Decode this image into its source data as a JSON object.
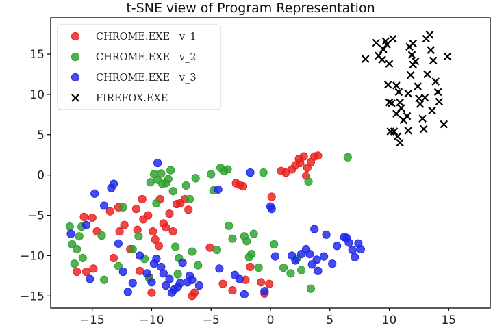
{
  "chart_data": {
    "type": "scatter",
    "title": "t-SNE view of Program Representation",
    "xlabel": "",
    "ylabel": "",
    "xlim": [
      -18.5,
      18.5
    ],
    "ylim": [
      -16.5,
      19.5
    ],
    "xticks": [
      -15,
      -10,
      -5,
      0,
      5,
      10,
      15
    ],
    "yticks": [
      -15,
      -10,
      -5,
      0,
      5,
      10,
      15
    ],
    "grid": false,
    "legend_position": "top-left",
    "series": [
      {
        "name": "CHROME.EXE   v_1",
        "marker": "circle",
        "color": "#e8201f",
        "points": [
          [
            -16.3,
            -12.0
          ],
          [
            -15.5,
            -12.0
          ],
          [
            -14.9,
            -11.6
          ],
          [
            -15.7,
            -5.2
          ],
          [
            -15.0,
            -5.3
          ],
          [
            -14.6,
            -7.0
          ],
          [
            -13.5,
            -4.5
          ],
          [
            -13.2,
            -10.3
          ],
          [
            -12.8,
            -4.0
          ],
          [
            -12.7,
            -7.0
          ],
          [
            -12.3,
            -6.2
          ],
          [
            -11.8,
            -9.2
          ],
          [
            -11.3,
            -4.2
          ],
          [
            -11.2,
            -6.8
          ],
          [
            -11.0,
            -11.9
          ],
          [
            -10.8,
            -3.0
          ],
          [
            -10.7,
            -5.5
          ],
          [
            -10.3,
            -5.0
          ],
          [
            -10.2,
            -12.7
          ],
          [
            -10.0,
            -14.6
          ],
          [
            -9.9,
            -7.0
          ],
          [
            -9.7,
            -8.0
          ],
          [
            -9.4,
            -8.8
          ],
          [
            -9.3,
            -3.0
          ],
          [
            -9.0,
            -6.0
          ],
          [
            -8.8,
            -6.5
          ],
          [
            -8.5,
            -4.8
          ],
          [
            -8.2,
            -7.0
          ],
          [
            -7.9,
            -3.6
          ],
          [
            -7.6,
            -3.5
          ],
          [
            -7.2,
            -3.0
          ],
          [
            -6.9,
            -4.3
          ],
          [
            -6.6,
            -15.0
          ],
          [
            -6.4,
            -14.6
          ],
          [
            -5.1,
            -9.0
          ],
          [
            -4.0,
            -13.5
          ],
          [
            -3.2,
            -14.3
          ],
          [
            -2.9,
            -1.0
          ],
          [
            -2.6,
            -1.2
          ],
          [
            -2.3,
            -1.4
          ],
          [
            -2.1,
            -13.0
          ],
          [
            -1.7,
            -11.4
          ],
          [
            -0.8,
            -13.3
          ],
          [
            -0.5,
            -14.7
          ],
          [
            -0.1,
            -13.5
          ],
          [
            0.1,
            -2.7
          ],
          [
            0.9,
            0.5
          ],
          [
            1.3,
            0.3
          ],
          [
            1.8,
            0.7
          ],
          [
            2.1,
            1.2
          ],
          [
            2.4,
            2.0
          ],
          [
            2.8,
            2.3
          ],
          [
            3.1,
            0.9
          ],
          [
            3.4,
            1.6
          ],
          [
            3.7,
            2.3
          ],
          [
            4.0,
            2.4
          ],
          [
            3.0,
            -0.1
          ],
          [
            2.5,
            1.5
          ]
        ]
      },
      {
        "name": "CHROME.EXE   v_2",
        "marker": "circle",
        "color": "#2ca02c",
        "points": [
          [
            -16.9,
            -6.4
          ],
          [
            -16.7,
            -8.6
          ],
          [
            -16.3,
            -9.2
          ],
          [
            -16.5,
            -11.0
          ],
          [
            -16.1,
            -7.6
          ],
          [
            -15.9,
            -6.4
          ],
          [
            -15.8,
            -10.3
          ],
          [
            -14.2,
            -7.5
          ],
          [
            -14.0,
            -13.0
          ],
          [
            -12.8,
            -11.3
          ],
          [
            -12.4,
            -4.0
          ],
          [
            -11.6,
            -9.2
          ],
          [
            -11.1,
            -7.6
          ],
          [
            -10.6,
            -10.4
          ],
          [
            -10.2,
            -12.8
          ],
          [
            -10.1,
            -0.9
          ],
          [
            -9.8,
            0.1
          ],
          [
            -9.6,
            -3.5
          ],
          [
            -9.5,
            -0.6
          ],
          [
            -9.2,
            0.2
          ],
          [
            -9.1,
            -1.1
          ],
          [
            -8.8,
            -1.0
          ],
          [
            -8.6,
            -0.5
          ],
          [
            -8.4,
            0.6
          ],
          [
            -8.2,
            -2.0
          ],
          [
            -8.0,
            -8.9
          ],
          [
            -7.7,
            -10.3
          ],
          [
            -7.8,
            -12.3
          ],
          [
            -7.1,
            -1.3
          ],
          [
            -6.8,
            -3.0
          ],
          [
            -6.6,
            -9.5
          ],
          [
            -6.3,
            -0.4
          ],
          [
            -6.1,
            -11.2
          ],
          [
            -5.0,
            0.1
          ],
          [
            -4.8,
            -1.9
          ],
          [
            -4.5,
            -9.3
          ],
          [
            -4.2,
            0.9
          ],
          [
            -3.9,
            0.5
          ],
          [
            -3.6,
            0.7
          ],
          [
            -3.5,
            -6.3
          ],
          [
            -3.2,
            -7.9
          ],
          [
            -2.2,
            -7.6
          ],
          [
            -2.0,
            -8.2
          ],
          [
            -1.8,
            -10.2
          ],
          [
            -1.6,
            -9.8
          ],
          [
            -1.0,
            -11.5
          ],
          [
            -0.6,
            0.3
          ],
          [
            0.3,
            -8.6
          ],
          [
            1.1,
            -11.5
          ],
          [
            1.7,
            -12.2
          ],
          [
            2.2,
            -10.4
          ],
          [
            2.6,
            -11.8
          ],
          [
            3.2,
            -0.8
          ],
          [
            3.4,
            -14.1
          ],
          [
            6.5,
            2.2
          ],
          [
            -1.4,
            -7.3
          ]
        ]
      },
      {
        "name": "CHROME.EXE   v_3",
        "marker": "circle",
        "color": "#1f26e8",
        "points": [
          [
            -16.8,
            -7.3
          ],
          [
            -15.5,
            -6.2
          ],
          [
            -15.2,
            -12.9
          ],
          [
            -14.8,
            -2.3
          ],
          [
            -14.0,
            -3.8
          ],
          [
            -13.4,
            -1.6
          ],
          [
            -13.2,
            -1.1
          ],
          [
            -12.8,
            -8.5
          ],
          [
            -12.4,
            -12.0
          ],
          [
            -11.6,
            -13.4
          ],
          [
            -11.0,
            -10.0
          ],
          [
            -10.4,
            -12.2
          ],
          [
            -10.0,
            -13.3
          ],
          [
            -9.6,
            -10.4
          ],
          [
            -9.5,
            1.5
          ],
          [
            -9.2,
            -11.4
          ],
          [
            -9.0,
            -12.2
          ],
          [
            -8.8,
            -13.7
          ],
          [
            -8.5,
            -12.9
          ],
          [
            -8.3,
            -14.6
          ],
          [
            -8.1,
            -14.2
          ],
          [
            -7.8,
            -13.9
          ],
          [
            -7.6,
            -13.4
          ],
          [
            -7.4,
            -10.9
          ],
          [
            -7.0,
            -13.3
          ],
          [
            -6.8,
            -12.5
          ],
          [
            -6.6,
            -13.0
          ],
          [
            -6.0,
            -13.7
          ],
          [
            -4.4,
            -1.8
          ],
          [
            -4.3,
            -11.6
          ],
          [
            -3.0,
            -12.4
          ],
          [
            -2.6,
            -12.9
          ],
          [
            -2.2,
            -14.8
          ],
          [
            -1.7,
            0.3
          ],
          [
            -0.5,
            -14.4
          ],
          [
            0.0,
            -3.9
          ],
          [
            0.1,
            -4.2
          ],
          [
            0.4,
            -10.1
          ],
          [
            1.8,
            -10.0
          ],
          [
            2.1,
            -10.6
          ],
          [
            2.6,
            -9.8
          ],
          [
            3.0,
            -9.2
          ],
          [
            3.3,
            -9.8
          ],
          [
            3.5,
            -11.1
          ],
          [
            3.7,
            -6.7
          ],
          [
            3.9,
            -10.5
          ],
          [
            4.0,
            -11.9
          ],
          [
            4.5,
            -10.1
          ],
          [
            4.7,
            -7.4
          ],
          [
            5.2,
            -11.0
          ],
          [
            5.6,
            -8.8
          ],
          [
            6.2,
            -7.7
          ],
          [
            6.6,
            -8.4
          ],
          [
            7.1,
            -10.2
          ],
          [
            6.9,
            -9.3
          ],
          [
            7.6,
            -9.2
          ],
          [
            7.4,
            -8.5
          ],
          [
            6.4,
            -7.8
          ],
          [
            -12.0,
            -14.5
          ],
          [
            -9.8,
            -11.0
          ]
        ]
      },
      {
        "name": "FIREFOX.EXE",
        "marker": "x",
        "color": "#000000",
        "points": [
          [
            8.0,
            14.4
          ],
          [
            8.9,
            16.4
          ],
          [
            9.1,
            14.8
          ],
          [
            9.4,
            14.3
          ],
          [
            9.5,
            15.6
          ],
          [
            9.7,
            16.6
          ],
          [
            9.8,
            16.2
          ],
          [
            10.0,
            13.8
          ],
          [
            10.3,
            16.9
          ],
          [
            10.6,
            11.1
          ],
          [
            10.8,
            10.3
          ],
          [
            10.2,
            8.9
          ],
          [
            10.6,
            7.6
          ],
          [
            10.9,
            9.0
          ],
          [
            10.4,
            5.4
          ],
          [
            10.7,
            4.8
          ],
          [
            10.9,
            4.0
          ],
          [
            11.2,
            6.8
          ],
          [
            11.5,
            7.3
          ],
          [
            11.6,
            10.1
          ],
          [
            11.8,
            12.4
          ],
          [
            12.0,
            13.7
          ],
          [
            12.2,
            14.1
          ],
          [
            11.9,
            14.9
          ],
          [
            12.0,
            16.3
          ],
          [
            11.7,
            15.9
          ],
          [
            12.4,
            11.0
          ],
          [
            12.6,
            8.8
          ],
          [
            12.8,
            7.0
          ],
          [
            13.0,
            9.6
          ],
          [
            13.2,
            12.5
          ],
          [
            13.5,
            15.5
          ],
          [
            13.1,
            16.9
          ],
          [
            13.4,
            17.4
          ],
          [
            13.7,
            14.2
          ],
          [
            13.9,
            11.6
          ],
          [
            14.1,
            10.3
          ],
          [
            14.2,
            9.1
          ],
          [
            14.6,
            6.3
          ],
          [
            14.9,
            14.7
          ],
          [
            10.0,
            9.0
          ],
          [
            11.0,
            8.3
          ],
          [
            12.9,
            5.7
          ],
          [
            10.1,
            5.4
          ],
          [
            11.6,
            5.5
          ],
          [
            9.9,
            11.2
          ],
          [
            12.5,
            9.5
          ],
          [
            13.6,
            8.0
          ]
        ]
      }
    ]
  }
}
